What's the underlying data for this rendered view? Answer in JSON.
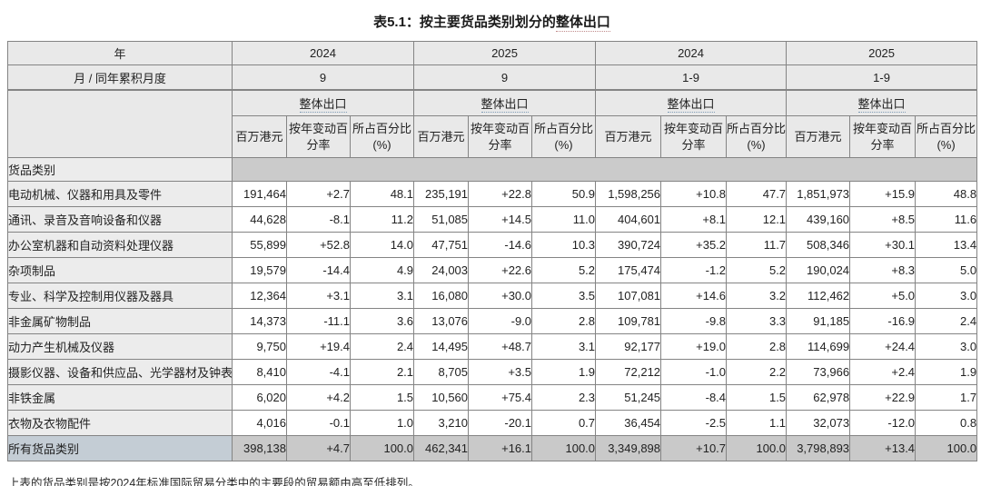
{
  "title": {
    "prefix": "表5.1：按主要货品类别划分的",
    "glossary_term": "整体出口"
  },
  "table": {
    "header": {
      "year_label": "年",
      "month_label": "月 / 同年累积月度",
      "col_groups": [
        {
          "year": "2024",
          "period": "9"
        },
        {
          "year": "2025",
          "period": "9"
        },
        {
          "year": "2024",
          "period": "1-9"
        },
        {
          "year": "2025",
          "period": "1-9"
        }
      ],
      "series_label": "整体出口",
      "sub_headers": [
        "百万港元",
        "按年变动百分率",
        "所占百分比 (%)"
      ],
      "category_label": "货品类别"
    },
    "rows": [
      {
        "label": "电动机械、仪器和用具及零件",
        "values": [
          "191,464",
          "+2.7",
          "48.1",
          "235,191",
          "+22.8",
          "50.9",
          "1,598,256",
          "+10.8",
          "47.7",
          "1,851,973",
          "+15.9",
          "48.8"
        ]
      },
      {
        "label": "通讯、录音及音响设备和仪器",
        "values": [
          "44,628",
          "-8.1",
          "11.2",
          "51,085",
          "+14.5",
          "11.0",
          "404,601",
          "+8.1",
          "12.1",
          "439,160",
          "+8.5",
          "11.6"
        ]
      },
      {
        "label": "办公室机器和自动资料处理仪器",
        "values": [
          "55,899",
          "+52.8",
          "14.0",
          "47,751",
          "-14.6",
          "10.3",
          "390,724",
          "+35.2",
          "11.7",
          "508,346",
          "+30.1",
          "13.4"
        ]
      },
      {
        "label": "杂项制品",
        "values": [
          "19,579",
          "-14.4",
          "4.9",
          "24,003",
          "+22.6",
          "5.2",
          "175,474",
          "-1.2",
          "5.2",
          "190,024",
          "+8.3",
          "5.0"
        ]
      },
      {
        "label": "专业、科学及控制用仪器及器具",
        "values": [
          "12,364",
          "+3.1",
          "3.1",
          "16,080",
          "+30.0",
          "3.5",
          "107,081",
          "+14.6",
          "3.2",
          "112,462",
          "+5.0",
          "3.0"
        ]
      },
      {
        "label": "非金属矿物制品",
        "values": [
          "14,373",
          "-11.1",
          "3.6",
          "13,076",
          "-9.0",
          "2.8",
          "109,781",
          "-9.8",
          "3.3",
          "91,185",
          "-16.9",
          "2.4"
        ]
      },
      {
        "label": "动力产生机械及仪器",
        "values": [
          "9,750",
          "+19.4",
          "2.4",
          "14,495",
          "+48.7",
          "3.1",
          "92,177",
          "+19.0",
          "2.8",
          "114,699",
          "+24.4",
          "3.0"
        ]
      },
      {
        "label": "摄影仪器、设备和供应品、光学器材及钟表",
        "values": [
          "8,410",
          "-4.1",
          "2.1",
          "8,705",
          "+3.5",
          "1.9",
          "72,212",
          "-1.0",
          "2.2",
          "73,966",
          "+2.4",
          "1.9"
        ]
      },
      {
        "label": "非铁金属",
        "values": [
          "6,020",
          "+4.2",
          "1.5",
          "10,560",
          "+75.4",
          "2.3",
          "51,245",
          "-8.4",
          "1.5",
          "62,978",
          "+22.9",
          "1.7"
        ]
      },
      {
        "label": "衣物及衣物配件",
        "values": [
          "4,016",
          "-0.1",
          "1.0",
          "3,210",
          "-20.1",
          "0.7",
          "36,454",
          "-2.5",
          "1.1",
          "32,073",
          "-12.0",
          "0.8"
        ]
      },
      {
        "label": "所有货品类别",
        "is_total": true,
        "values": [
          "398,138",
          "+4.7",
          "100.0",
          "462,341",
          "+16.1",
          "100.0",
          "3,349,898",
          "+10.7",
          "100.0",
          "3,798,893",
          "+13.4",
          "100.0"
        ]
      }
    ]
  },
  "footnote": "上表的货品类别是按2024年标准国际贸易分类中的主要段的贸易额由高至低排列。",
  "colors": {
    "border": "#848484",
    "header_bg": "#e9e9e9",
    "label_bg": "#ececec",
    "band_bg": "#cbcbcb",
    "total_bg": "#c9c9c9",
    "total_label_bg": "#c4cdd5",
    "series_underline": "#7f9cb6",
    "title_underline": "#c08a8a"
  }
}
